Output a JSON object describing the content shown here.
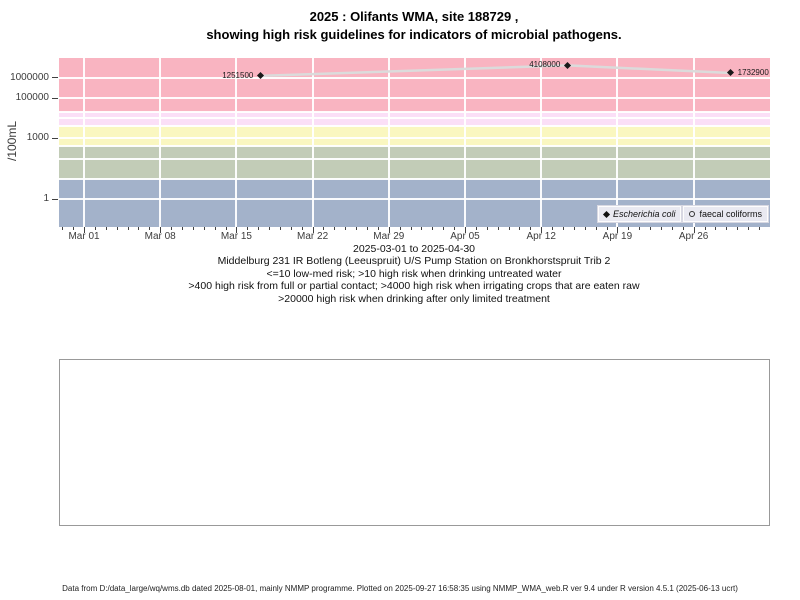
{
  "title": {
    "line1": "2025 : Olifants WMA, site 188729 ,",
    "line2": "showing high risk guidelines for indicators of microbial pathogens."
  },
  "chart_data": {
    "type": "scatter",
    "title": "2025 : Olifants WMA, site 188729 , showing high risk guidelines for indicators of microbial pathogens.",
    "ylabel": "/100mL",
    "y_scale": "log10",
    "y_ticks": [
      {
        "label": "1",
        "value": 1
      },
      {
        "label": "1000",
        "value": 1000
      },
      {
        "label": "100000",
        "value": 100000
      },
      {
        "label": "1000000",
        "value": 1000000
      }
    ],
    "x_range": {
      "start": "2025-03-01",
      "end": "2025-04-30"
    },
    "x_ticks": [
      {
        "label": "Mar 01",
        "day": 0
      },
      {
        "label": "Mar 08",
        "day": 7
      },
      {
        "label": "Mar 15",
        "day": 14
      },
      {
        "label": "Mar 22",
        "day": 21
      },
      {
        "label": "Mar 29",
        "day": 28
      },
      {
        "label": "Apr 05",
        "day": 35
      },
      {
        "label": "Apr 12",
        "day": 42
      },
      {
        "label": "Apr 19",
        "day": 49
      },
      {
        "label": "Apr 26",
        "day": 56
      }
    ],
    "x_axis": {
      "minor_tick_start_day": -2,
      "minor_tick_end_day": 62,
      "minor_tick_interval_days": 1
    },
    "gridline_values": [
      1,
      10,
      100,
      400,
      1000,
      4000,
      10000,
      20000,
      100000,
      1000000
    ],
    "grid_week_days": [
      0,
      7,
      14,
      21,
      28,
      35,
      42,
      49,
      56
    ],
    "bands": [
      {
        "from": 20000,
        "to": null,
        "color": "#F9B4C1",
        "meaning": "high risk when drinking after only limited treatment"
      },
      {
        "from": 4000,
        "to": 20000,
        "color": "#FBDFF7",
        "meaning": "high risk when irrigating crops that are eaten raw"
      },
      {
        "from": 400,
        "to": 4000,
        "color": "#FAF7C0",
        "meaning": "high risk from full or partial contact"
      },
      {
        "from": 10,
        "to": 400,
        "color": "#C2CCB7",
        "meaning": "high risk when drinking untreated water"
      },
      {
        "from": null,
        "to": 10,
        "color": "#A3B2CA",
        "meaning": "low-med risk"
      }
    ],
    "series": [
      {
        "name": "Escherichia coli",
        "marker": "filled-diamond",
        "line_color": "#DBDBDB",
        "points": [
          {
            "value": 1251500,
            "label": "1251500",
            "approx_date": "2025-03-17",
            "day": 16.2,
            "label_side": "left"
          },
          {
            "value": 4108000,
            "label": "4108000",
            "approx_date": "2025-04-14",
            "day": 44.4,
            "label_side": "left"
          },
          {
            "value": 1732900,
            "label": "1732900",
            "approx_date": "2025-04-29",
            "day": 59.4,
            "label_side": "right"
          }
        ]
      },
      {
        "name": "faecal coliforms",
        "marker": "open-circle",
        "points": []
      }
    ],
    "legend_position": "bottom-right"
  },
  "subtitle": {
    "range": "2025-03-01 to 2025-04-30",
    "station": "Middelburg 231 IR Botleng (Leeuspruit) U/S Pump Station on Bronkhorstspruit Trib 2",
    "guideline1": "<=10 low-med risk; >10 high risk when drinking untreated water",
    "guideline2": ">400 high risk from full or partial contact; >4000 high risk when irrigating crops that are eaten raw",
    "guideline3": ">20000 high risk when drinking after only limited treatment"
  },
  "footer": {
    "text": "Data from D:/data_large/wq/wms.db dated 2025-08-01, mainly NMMP programme. Plotted on 2025-09-27 16:58:35 using NMMP_WMA_web.R ver 9.4 under R version 4.5.1 (2025-06-13 ucrt)"
  }
}
